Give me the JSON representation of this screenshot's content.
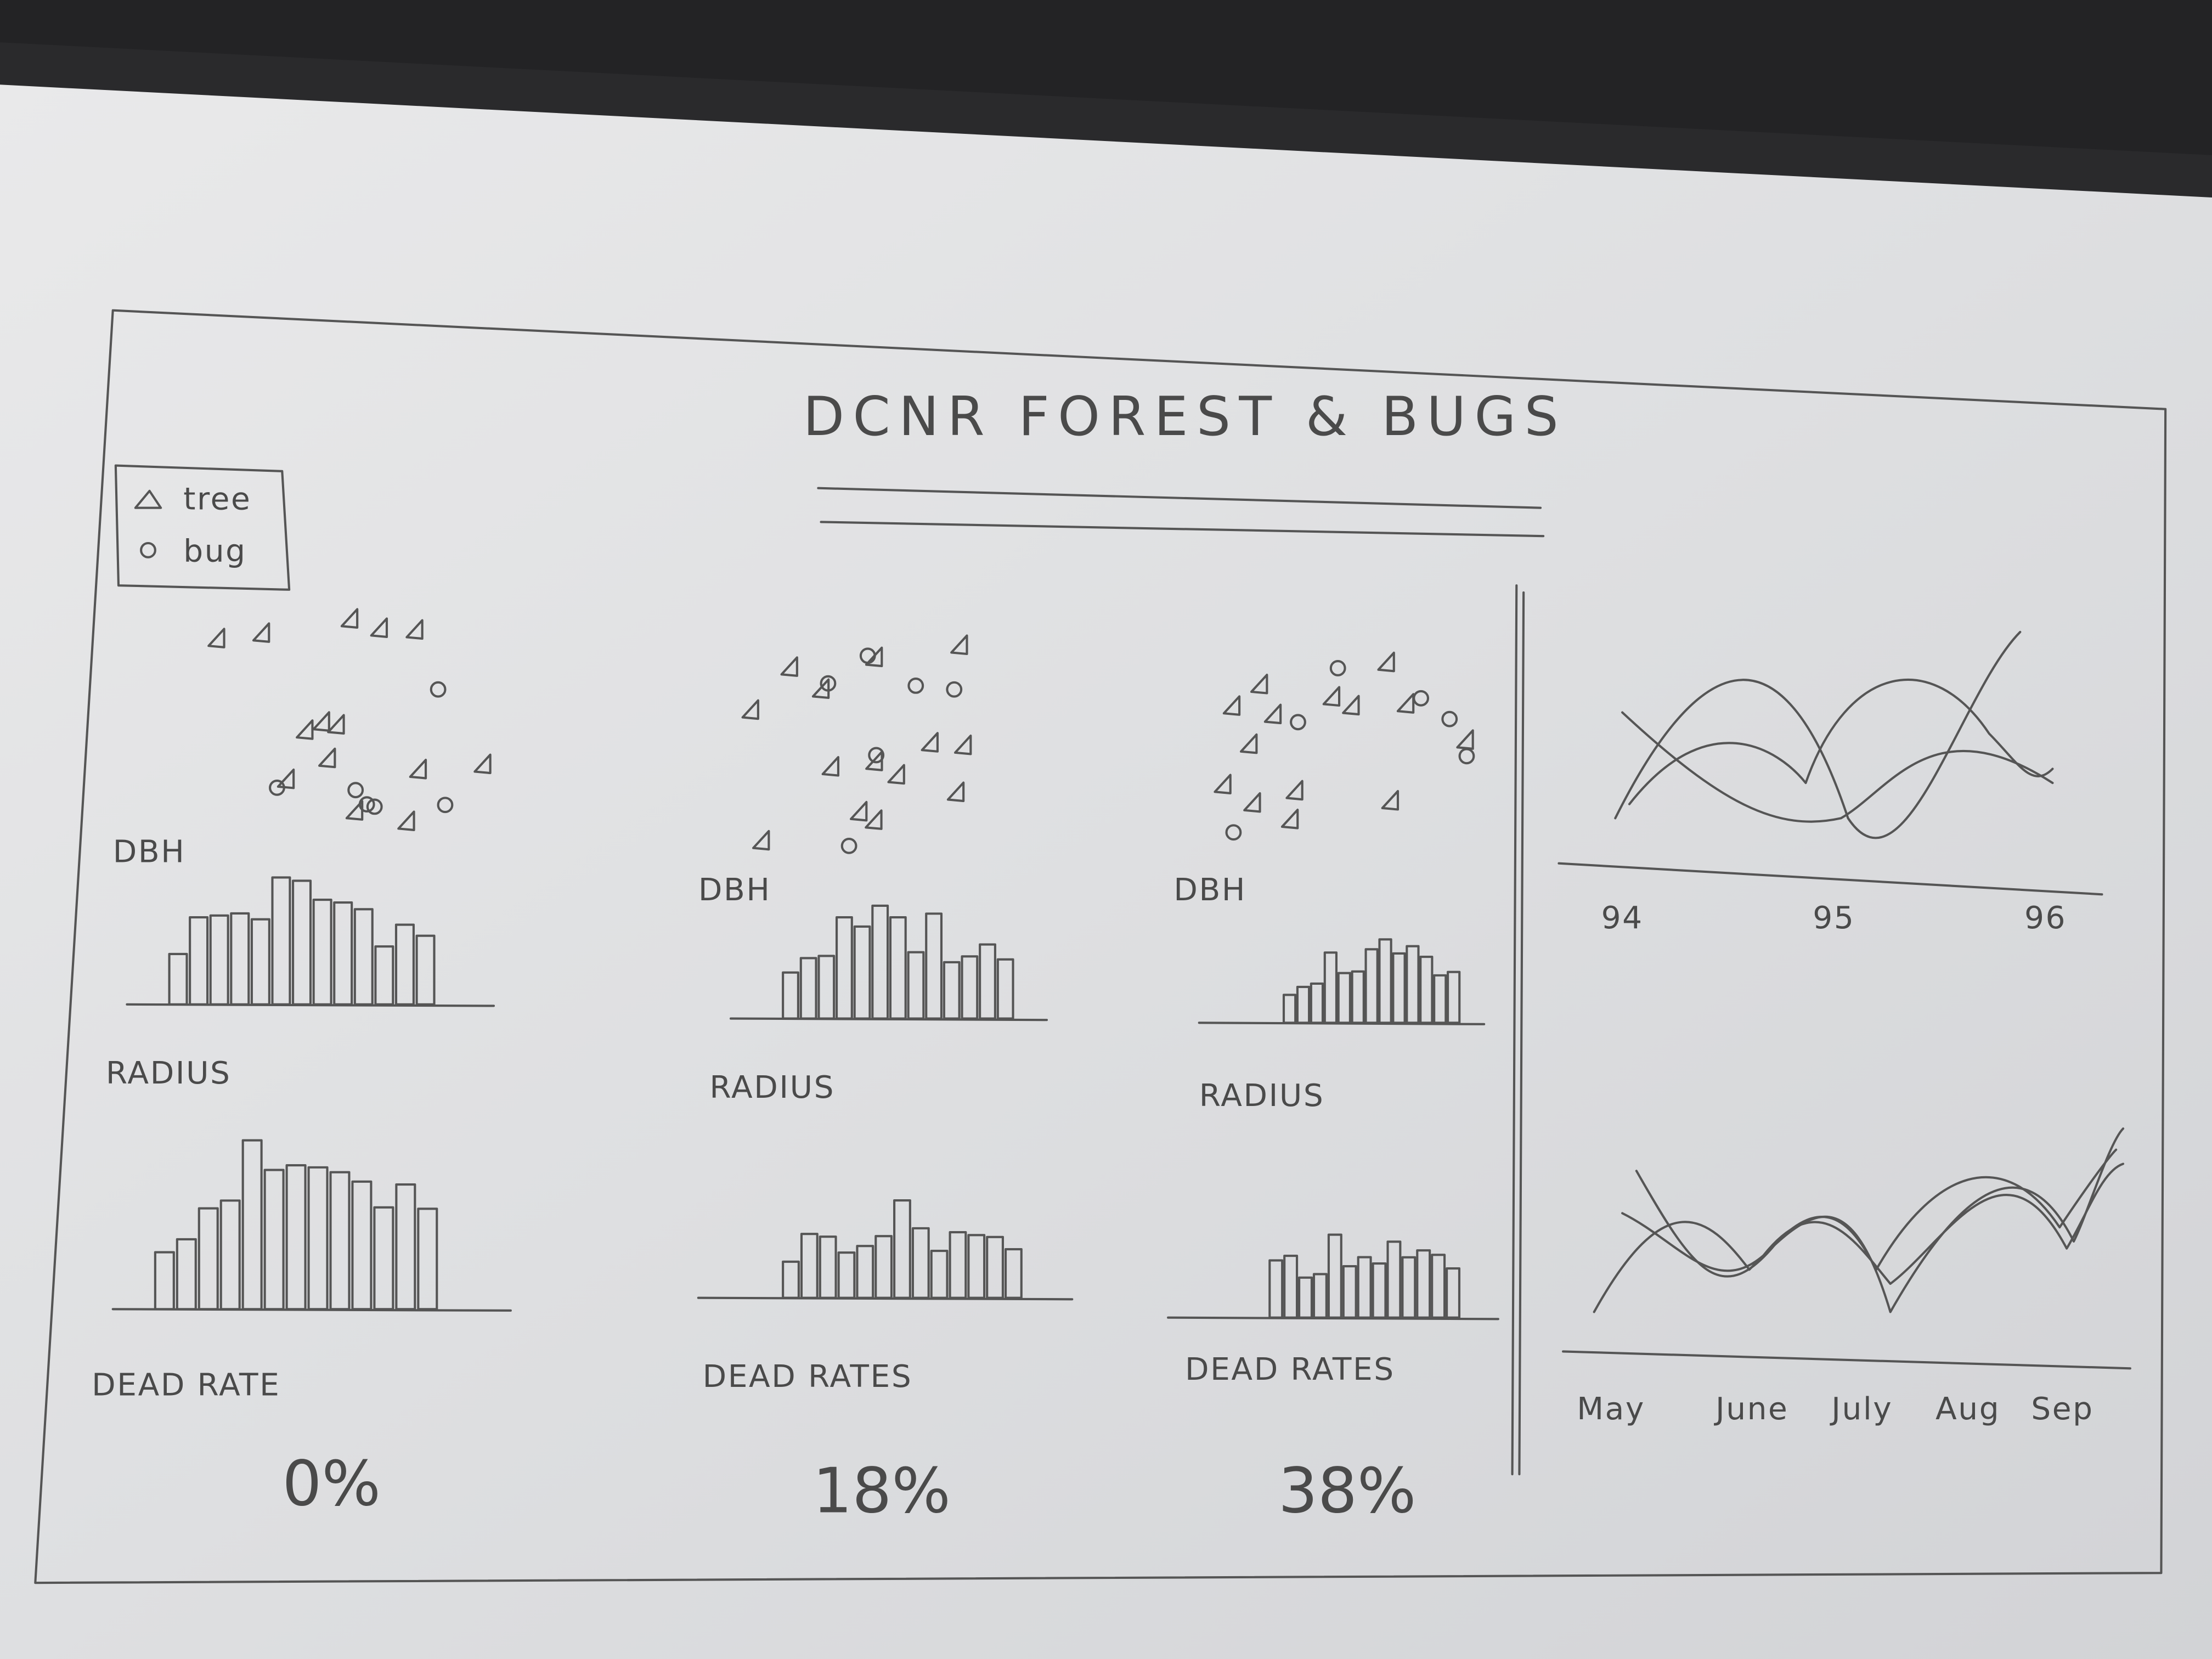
{
  "header": {
    "title": "DCNR FOREST & BUGS"
  },
  "legend": [
    "tree",
    "bug"
  ],
  "panels": [
    {
      "dbh_label": "DBH",
      "radius_label": "RADIUS",
      "dead_rate_label": "DEAD RATE",
      "dead_rate": "0%"
    },
    {
      "dbh_label": "DBH",
      "radius_label": "RADIUS",
      "dead_rate_label": "DEAD RATES",
      "dead_rate": "18%"
    },
    {
      "dbh_label": "DBH",
      "radius_label": "RADIUS",
      "dead_rate_label": "DEAD RATES",
      "dead_rate": "38%"
    }
  ],
  "trend_charts": [
    {
      "x_labels": [
        "94",
        "95",
        "96"
      ]
    },
    {
      "x_labels": [
        "May",
        "June",
        "July",
        "Aug",
        "Sep"
      ]
    }
  ]
}
